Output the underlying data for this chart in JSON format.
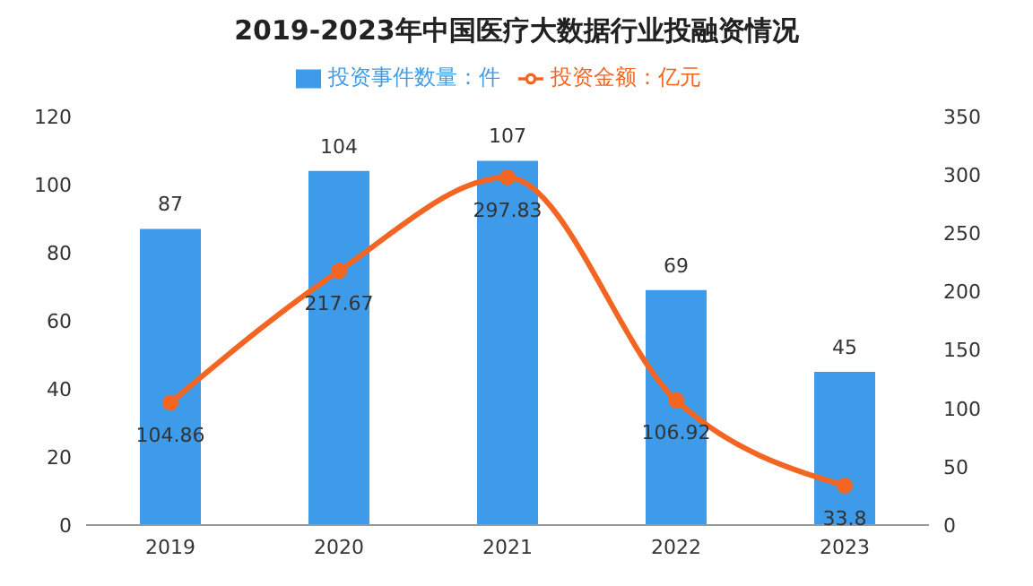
{
  "chart_data": {
    "type": "bar",
    "title": "2019-2023年中国医疗大数据行业投融资情况",
    "categories": [
      "2019",
      "2020",
      "2021",
      "2022",
      "2023"
    ],
    "series": [
      {
        "name": "投资事件数量：件",
        "color": "#3d9be9",
        "values": [
          87,
          104,
          107,
          69,
          45
        ]
      },
      {
        "name": "投资金额：亿元",
        "type": "line",
        "axis": "y2",
        "color": "#f26522",
        "values": [
          104.86,
          217.67,
          297.83,
          106.92,
          33.8
        ]
      }
    ],
    "ylim": [
      0,
      120
    ],
    "yticks": [
      0,
      20,
      40,
      60,
      80,
      100,
      120
    ],
    "y2lim": [
      0,
      350
    ],
    "y2ticks": [
      0,
      50,
      100,
      150,
      200,
      250,
      300,
      350
    ],
    "data_labels": true,
    "grid": false,
    "legend": "top",
    "marker": "circle"
  }
}
